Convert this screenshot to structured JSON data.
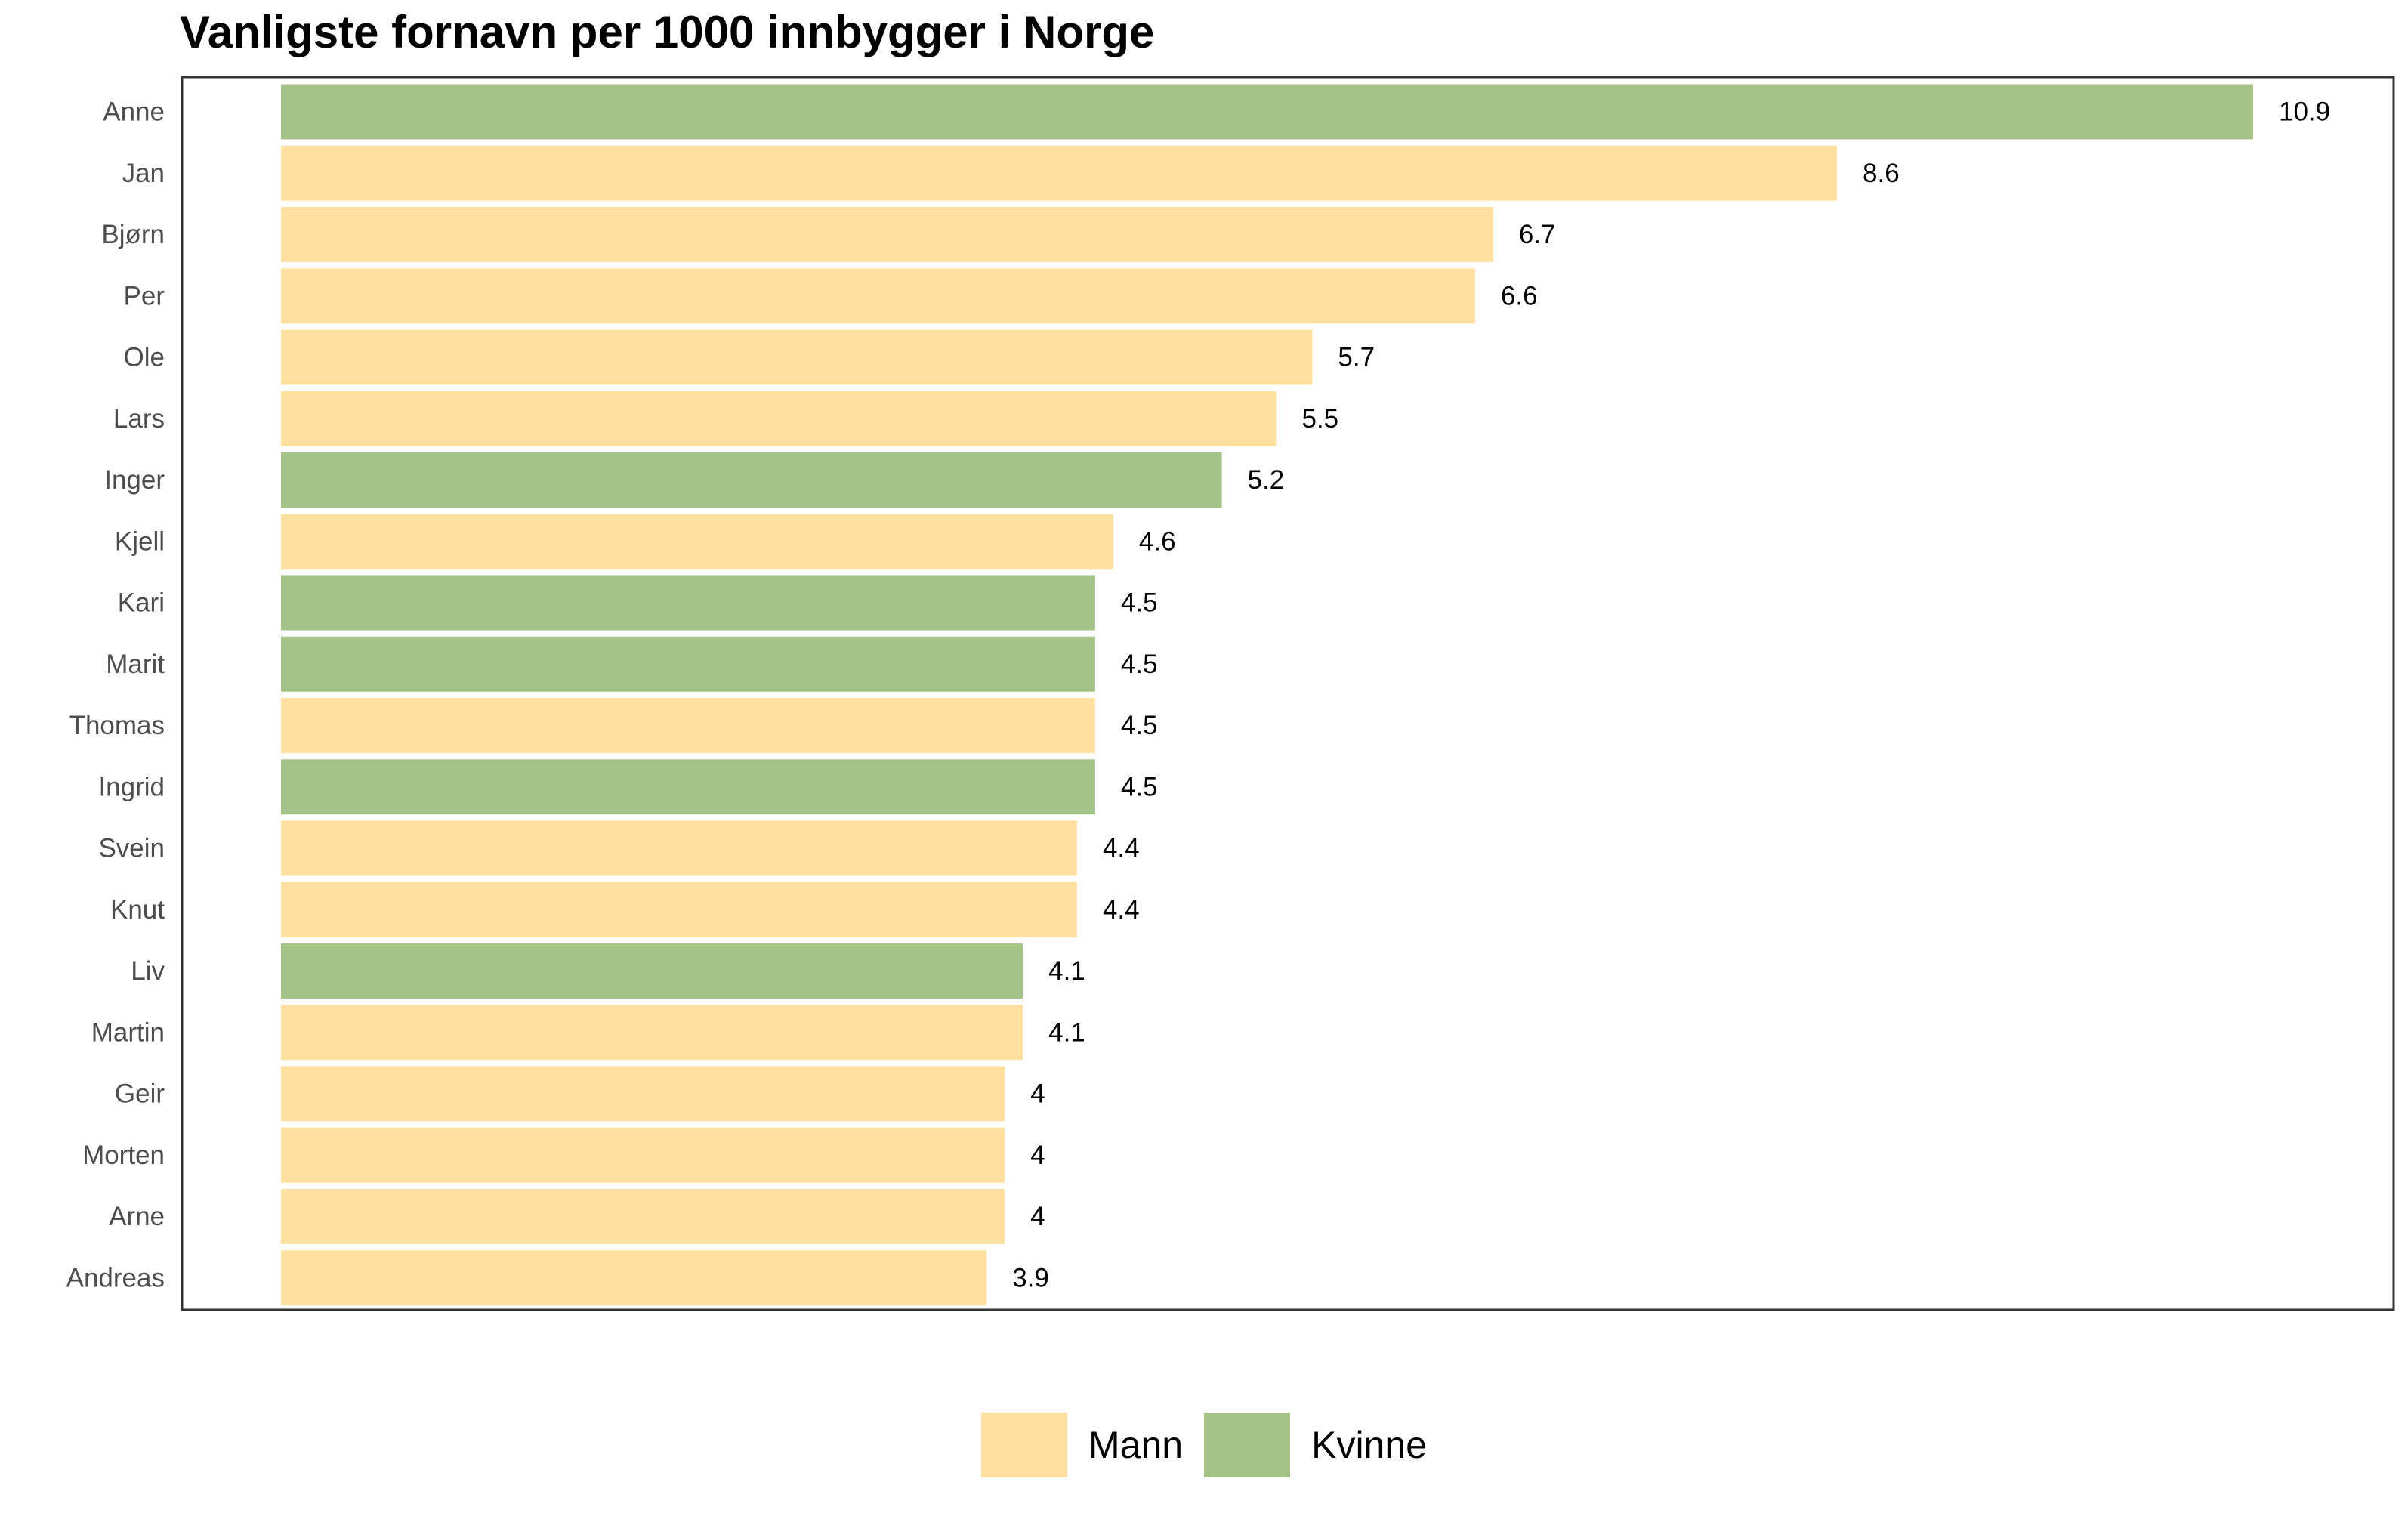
{
  "chart_data": {
    "type": "bar",
    "orientation": "horizontal",
    "title": "Vanligste fornavn per 1000 innbygger i Norge",
    "xlabel": "",
    "ylabel": "",
    "xlim": [
      0,
      11.5
    ],
    "grid": false,
    "legend_position": "bottom",
    "categories": [
      "Anne",
      "Jan",
      "Bjørn",
      "Per",
      "Ole",
      "Lars",
      "Inger",
      "Kjell",
      "Kari",
      "Marit",
      "Thomas",
      "Ingrid",
      "Svein",
      "Knut",
      "Liv",
      "Martin",
      "Geir",
      "Morten",
      "Arne",
      "Andreas"
    ],
    "values": [
      10.9,
      8.6,
      6.7,
      6.6,
      5.7,
      5.5,
      5.2,
      4.6,
      4.5,
      4.5,
      4.5,
      4.5,
      4.4,
      4.4,
      4.1,
      4.1,
      4.0,
      4.0,
      4.0,
      3.9
    ],
    "value_labels": [
      "10.9",
      "8.6",
      "6.7",
      "6.6",
      "5.7",
      "5.5",
      "5.2",
      "4.6",
      "4.5",
      "4.5",
      "4.5",
      "4.5",
      "4.4",
      "4.4",
      "4.1",
      "4.1",
      "4",
      "4",
      "4",
      "3.9"
    ],
    "groups": [
      "Kvinne",
      "Mann",
      "Mann",
      "Mann",
      "Mann",
      "Mann",
      "Kvinne",
      "Mann",
      "Kvinne",
      "Kvinne",
      "Mann",
      "Kvinne",
      "Mann",
      "Mann",
      "Kvinne",
      "Mann",
      "Mann",
      "Mann",
      "Mann",
      "Mann"
    ],
    "legend": [
      {
        "name": "Mann",
        "color": "#FDE0A0"
      },
      {
        "name": "Kvinne",
        "color": "#A4C387"
      }
    ]
  }
}
